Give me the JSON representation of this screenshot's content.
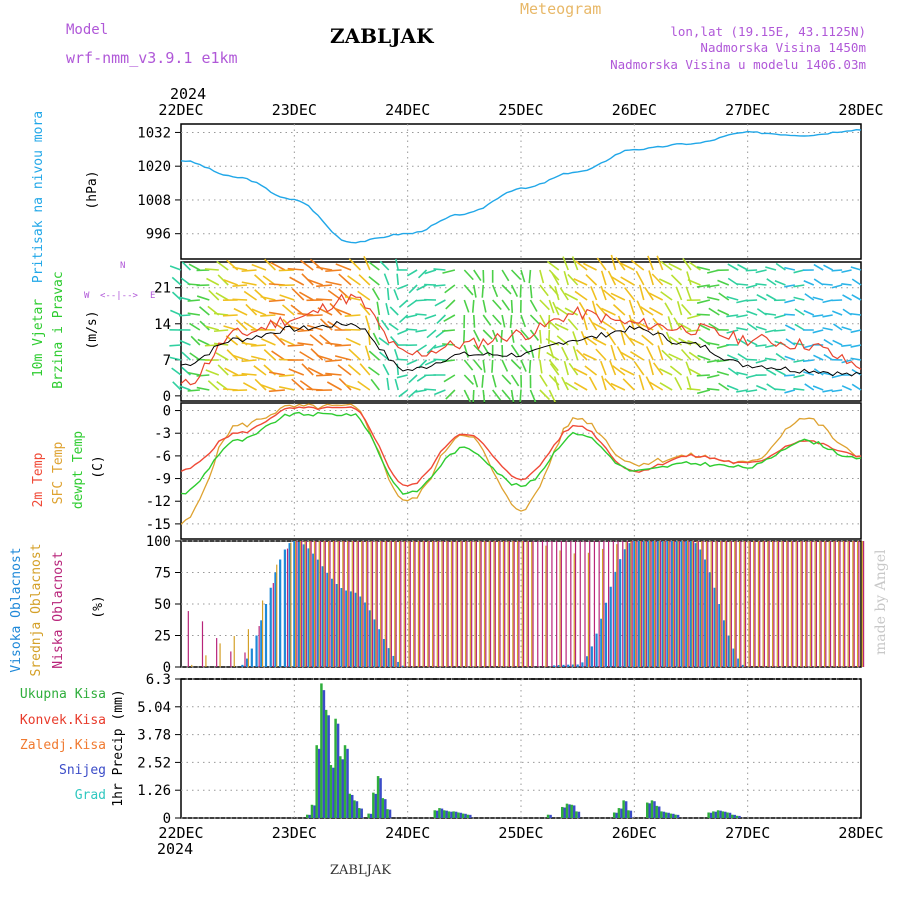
{
  "header": {
    "model_label": "Model",
    "model_name": "wrf-nmm_v3.9.1 e1km",
    "station": "ZABLJAK",
    "meteogram": "Meteogram",
    "lonlat": "lon,lat (19.15E, 43.1125N)",
    "altitude": "Nadmorska Visina 1450m",
    "model_altitude": "Nadmorska Visina u modelu 1406.03m",
    "footer_station": "ZABLJAK",
    "watermark": "made by Angel"
  },
  "colors": {
    "pressure": "#21a7e8",
    "wind_speed": "#000000",
    "gust": "#e8452e",
    "t2m": "#f04a37",
    "sfc": "#dea230",
    "dewpt": "#2ecc30",
    "high_cloud": "#1e88d8",
    "mid_cloud": "#d4a028",
    "low_cloud": "#b8247a",
    "precip_total": "#2fae3c",
    "precip_snow": "#3b4cc8",
    "purple_text": "#b058d8",
    "orange_text": "#e8b868"
  },
  "chart_data": [
    {
      "type": "line",
      "panel": "pressure",
      "ylabel": [
        "Pritisak na nivou mora",
        "(hPa)"
      ],
      "yticks": [
        "1032",
        "1020",
        "1008",
        "996"
      ],
      "ylim": [
        987,
        1035
      ],
      "x": [
        "22DEC",
        "22DEC 12",
        "23DEC",
        "23DEC 12",
        "24DEC",
        "24DEC 12",
        "25DEC",
        "25DEC 12",
        "26DEC",
        "26DEC 12",
        "27DEC",
        "27DEC 12",
        "28DEC"
      ],
      "series": [
        {
          "values": [
            1022,
            1016,
            1008,
            993,
            996,
            1003,
            1012,
            1018,
            1026,
            1028,
            1032,
            1031,
            1033
          ]
        }
      ]
    },
    {
      "type": "line",
      "panel": "wind",
      "ylabel": [
        "10m Vjetar",
        "Brzina i Pravac",
        "(m/s)"
      ],
      "yticks": [
        "21",
        "14",
        "7",
        "0"
      ],
      "ylim": [
        -1,
        26
      ],
      "direction_legend": [
        "N",
        "W",
        "E",
        "<--|-->"
      ],
      "x": [
        "22DEC",
        "22DEC 12",
        "23DEC",
        "23DEC 12",
        "24DEC",
        "24DEC 12",
        "25DEC",
        "25DEC 12",
        "26DEC",
        "26DEC 12",
        "27DEC",
        "27DEC 12",
        "28DEC"
      ],
      "series": [
        {
          "values": [
            6,
            11,
            13,
            14,
            5,
            8,
            8,
            11,
            13,
            10,
            6,
            5,
            4
          ]
        },
        {
          "values": [
            2,
            12,
            15,
            19,
            8,
            10,
            12,
            16,
            14,
            13,
            11,
            10,
            6
          ]
        }
      ]
    },
    {
      "type": "line",
      "panel": "temperature",
      "ylabel": [
        "2m Temp",
        "SFC Temp",
        "dewpt Temp",
        "(C)"
      ],
      "yticks": [
        "0",
        "-3",
        "-6",
        "-9",
        "-12",
        "-15"
      ],
      "ylim": [
        -17,
        1
      ],
      "x": [
        "22DEC",
        "22DEC 12",
        "23DEC",
        "23DEC 12",
        "24DEC",
        "24DEC 12",
        "25DEC",
        "25DEC 12",
        "26DEC",
        "26DEC 12",
        "27DEC",
        "27DEC 12",
        "28DEC"
      ],
      "series": [
        {
          "values": [
            -8,
            -3,
            0.3,
            0.3,
            -10,
            -3,
            -9,
            -2,
            -8,
            -6,
            -7,
            -4,
            -6
          ]
        },
        {
          "values": [
            -15,
            -2,
            0.5,
            0.5,
            -12,
            -3,
            -13,
            -1,
            -7,
            -6,
            -7,
            -1,
            -6
          ]
        },
        {
          "values": [
            -11,
            -4,
            -0.5,
            -0.5,
            -11,
            -5,
            -10,
            -3,
            -8,
            -7,
            -7.5,
            -4,
            -6.5
          ]
        }
      ]
    },
    {
      "type": "bar",
      "panel": "clouds",
      "ylabel": [
        "Visoka Oblacnost",
        "Srednja Oblacnost",
        "Niska Oblacnost",
        "(%)"
      ],
      "yticks": [
        "100",
        "75",
        "50",
        "25",
        "0"
      ],
      "ylim": [
        0,
        100
      ],
      "series": [
        {
          "name": "Visoka Oblacnost",
          "values": [
            0,
            0,
            100,
            60,
            0,
            0,
            0,
            2,
            100,
            100,
            0,
            0,
            0
          ]
        },
        {
          "name": "Srednja Oblacnost",
          "values": [
            0,
            25,
            100,
            100,
            100,
            100,
            100,
            90,
            100,
            100,
            100,
            100,
            100
          ]
        },
        {
          "name": "Niska Oblacnost",
          "values": [
            45,
            10,
            100,
            100,
            100,
            100,
            100,
            100,
            100,
            100,
            100,
            100,
            100
          ]
        }
      ]
    },
    {
      "type": "bar",
      "panel": "precip",
      "ylabel": "1hr Precip (mm)",
      "yticks": [
        "6.3",
        "5.04",
        "3.78",
        "2.52",
        "1.26",
        "0"
      ],
      "ylim": [
        0,
        6.3
      ],
      "legend": [
        "Ukupna Kisa",
        "Konvek.Kisa",
        "Zaledj.Kisa",
        "Snijeg",
        "Grad"
      ],
      "x": [
        "23DEC 03",
        "23DEC 04",
        "23DEC 05",
        "23DEC 06",
        "23DEC 07",
        "23DEC 08",
        "23DEC 09",
        "23DEC 10",
        "23DEC 11",
        "23DEC 12",
        "23DEC 13",
        "23DEC 14",
        "23DEC 16",
        "23DEC 17",
        "23DEC 18",
        "23DEC 19",
        "23DEC 20",
        "24DEC 06",
        "24DEC 07",
        "24DEC 08",
        "24DEC 09",
        "24DEC 10",
        "24DEC 11",
        "24DEC 12",
        "24DEC 13",
        "25DEC 06",
        "25DEC 09",
        "25DEC 10",
        "25DEC 11",
        "25DEC 12",
        "25DEC 20",
        "25DEC 21",
        "25DEC 22",
        "25DEC 23",
        "26DEC 03",
        "26DEC 04",
        "26DEC 05",
        "26DEC 06",
        "26DEC 07",
        "26DEC 08",
        "26DEC 09",
        "26DEC 16",
        "26DEC 17",
        "26DEC 18",
        "26DEC 19",
        "26DEC 20",
        "26DEC 21",
        "26DEC 22"
      ],
      "values": [
        0.15,
        0.6,
        3.3,
        6.1,
        4.9,
        2.4,
        4.5,
        2.8,
        3.3,
        1.1,
        0.8,
        0.45,
        0.2,
        1.15,
        1.9,
        0.9,
        0.4,
        0.35,
        0.45,
        0.35,
        0.3,
        0.3,
        0.25,
        0.2,
        0.15,
        0.15,
        0.5,
        0.65,
        0.6,
        0.3,
        0.25,
        0.45,
        0.8,
        0.35,
        0.7,
        0.8,
        0.55,
        0.3,
        0.25,
        0.2,
        0.15,
        0.25,
        0.3,
        0.35,
        0.3,
        0.25,
        0.15,
        0.1
      ]
    }
  ],
  "xaxis": {
    "year": "2024",
    "labels": [
      "22DEC",
      "23DEC",
      "24DEC",
      "25DEC",
      "26DEC",
      "27DEC",
      "28DEC"
    ]
  }
}
